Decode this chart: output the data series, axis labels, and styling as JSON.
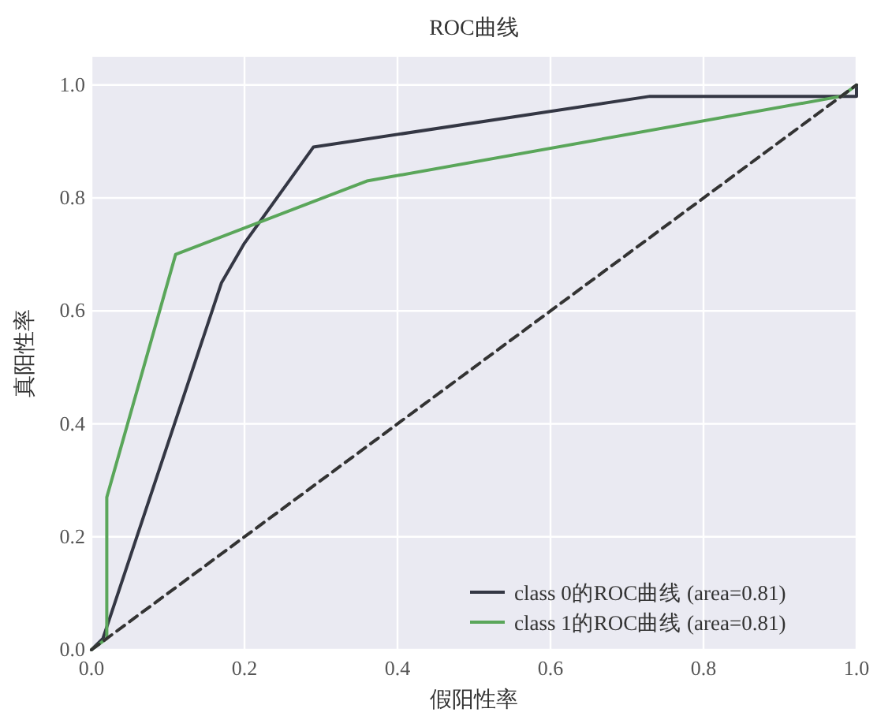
{
  "chart_data": {
    "type": "line",
    "title": "ROC曲线",
    "xlabel": "假阳性率",
    "ylabel": "真阳性率",
    "xlim": [
      0,
      1
    ],
    "ylim": [
      0,
      1.05
    ],
    "xticks": [
      {
        "value": 0,
        "label": "0.0"
      },
      0.2,
      0.4,
      0.6,
      0.8,
      {
        "value": 1,
        "label": "1.0"
      }
    ],
    "yticks": [
      {
        "value": 0,
        "label": "0.0"
      },
      0.2,
      0.4,
      0.6,
      0.8,
      {
        "value": 1,
        "label": "1.0"
      }
    ],
    "grid": true,
    "legend": "bottom right",
    "series": [
      {
        "name": "class 0的ROC曲线 (area=0.81)",
        "color": "#343744",
        "x": [
          0,
          0.015,
          0.17,
          0.2,
          0.29,
          0.73,
          1,
          1
        ],
        "values": [
          0,
          0.02,
          0.65,
          0.72,
          0.89,
          0.98,
          0.98,
          1
        ]
      },
      {
        "name": "class 1的ROC曲线 (area=0.81)",
        "color": "#5aa65a",
        "x": [
          0,
          0.02,
          0.02,
          0.11,
          0.36,
          0.98,
          1
        ],
        "values": [
          0,
          0.02,
          0.27,
          0.7,
          0.83,
          0.98,
          1
        ]
      },
      {
        "color": "#333333",
        "line_style": "dashed",
        "x": [
          0,
          1
        ],
        "values": [
          0,
          1
        ]
      }
    ]
  }
}
